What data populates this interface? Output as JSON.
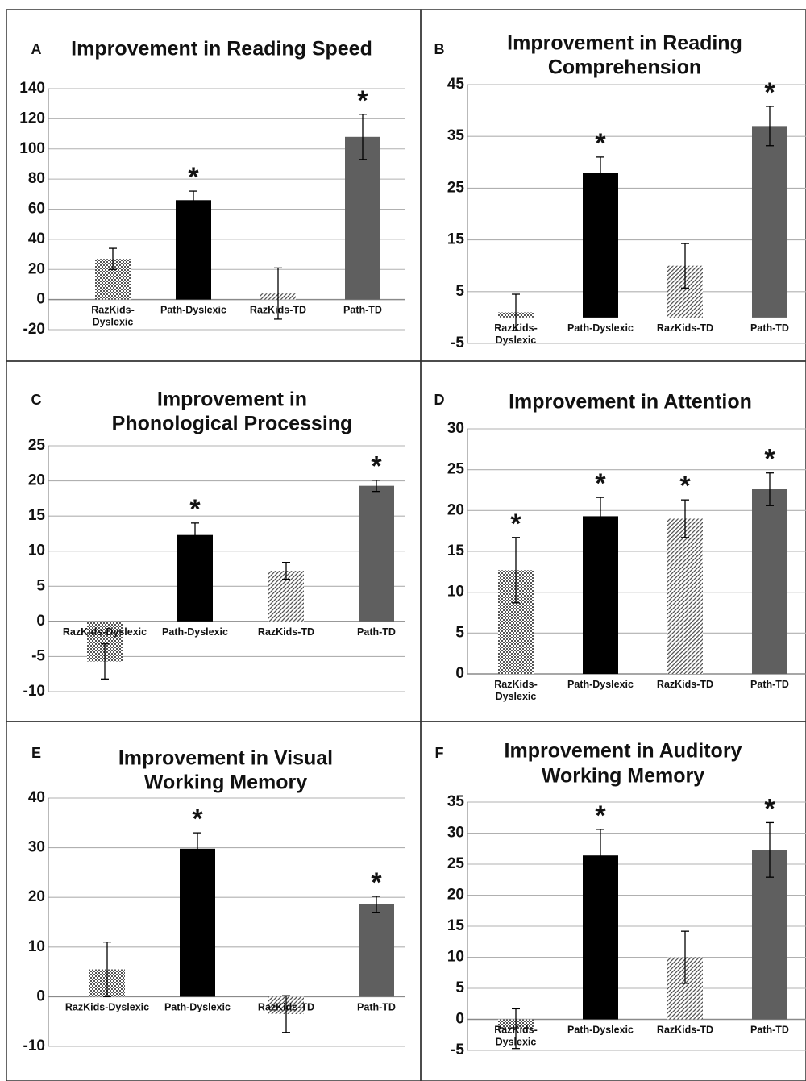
{
  "colors": {
    "path_dyslexic": "#000000",
    "path_td": "#5f5f5f",
    "pattern_ink": "#555555",
    "gridline": "#b0b0b0",
    "panel_border": "#333333"
  },
  "chart_data": [
    {
      "panel": "A",
      "type": "bar",
      "title": [
        "Improvement in Reading Speed"
      ],
      "categories": [
        [
          "RazKids-",
          "Dyslexic"
        ],
        [
          "Path-Dyslexic"
        ],
        [
          "RazKids-TD"
        ],
        [
          "Path-TD"
        ]
      ],
      "values": [
        27,
        66,
        4,
        108
      ],
      "error": [
        7,
        6,
        17,
        15
      ],
      "significant": [
        false,
        true,
        false,
        true
      ],
      "bar_fills": [
        "checker",
        "path_dyslexic",
        "hatch",
        "path_td"
      ],
      "ylim": [
        -20,
        140
      ],
      "yticks": [
        -20,
        0,
        20,
        40,
        60,
        80,
        100,
        120,
        140
      ],
      "grid": true,
      "xlabel": "",
      "ylabel": ""
    },
    {
      "panel": "B",
      "type": "bar",
      "title": [
        "Improvement in Reading",
        "Comprehension"
      ],
      "categories": [
        [
          "RazKids-",
          "Dyslexic"
        ],
        [
          "Path-Dyslexic"
        ],
        [
          "RazKids-TD"
        ],
        [
          "Path-TD"
        ]
      ],
      "values": [
        1,
        28,
        10,
        37
      ],
      "error": [
        3.5,
        3,
        4.3,
        3.8
      ],
      "significant": [
        false,
        true,
        false,
        true
      ],
      "bar_fills": [
        "checker",
        "path_dyslexic",
        "hatch",
        "path_td"
      ],
      "ylim": [
        -5,
        45
      ],
      "yticks": [
        -5,
        5,
        15,
        25,
        35,
        45
      ],
      "grid": true,
      "xlabel": "",
      "ylabel": ""
    },
    {
      "panel": "C",
      "type": "bar",
      "title": [
        "Improvement in",
        "Phonological Processing"
      ],
      "categories": [
        [
          "RazKids-Dyslexic"
        ],
        [
          "Path-Dyslexic"
        ],
        [
          "RazKids-TD"
        ],
        [
          "Path-TD"
        ]
      ],
      "values": [
        -5.7,
        12.3,
        7.2,
        19.3
      ],
      "error": [
        2.5,
        1.7,
        1.2,
        0.8
      ],
      "significant": [
        false,
        true,
        false,
        true
      ],
      "bar_fills": [
        "checker",
        "path_dyslexic",
        "hatch",
        "path_td"
      ],
      "ylim": [
        -10,
        25
      ],
      "yticks": [
        -10,
        -5,
        0,
        5,
        10,
        15,
        20,
        25
      ],
      "grid": true,
      "xlabel": "",
      "ylabel": ""
    },
    {
      "panel": "D",
      "type": "bar",
      "title": [
        "Improvement in Attention"
      ],
      "categories": [
        [
          "RazKids-",
          "Dyslexic"
        ],
        [
          "Path-Dyslexic"
        ],
        [
          "RazKids-TD"
        ],
        [
          "Path-TD"
        ]
      ],
      "values": [
        12.7,
        19.3,
        19,
        22.6
      ],
      "error": [
        4,
        2.3,
        2.3,
        2
      ],
      "significant": [
        true,
        true,
        true,
        true
      ],
      "bar_fills": [
        "checker",
        "path_dyslexic",
        "hatch",
        "path_td"
      ],
      "ylim": [
        0,
        30
      ],
      "yticks": [
        0,
        5,
        10,
        15,
        20,
        25,
        30
      ],
      "grid": true,
      "xlabel": "",
      "ylabel": ""
    },
    {
      "panel": "E",
      "type": "bar",
      "title": [
        "Improvement in Visual",
        "Working Memory"
      ],
      "categories": [
        [
          "RazKids-Dyslexic"
        ],
        [
          "Path-Dyslexic"
        ],
        [
          "RazKids-TD"
        ],
        [
          "Path-TD"
        ]
      ],
      "values": [
        5.5,
        29.8,
        -3.5,
        18.6
      ],
      "error": [
        5.5,
        3.2,
        3.7,
        1.6
      ],
      "significant": [
        false,
        true,
        false,
        true
      ],
      "bar_fills": [
        "checker",
        "path_dyslexic",
        "hatch",
        "path_td"
      ],
      "ylim": [
        -10,
        40
      ],
      "yticks": [
        -10,
        0,
        10,
        20,
        30,
        40
      ],
      "grid": true,
      "xlabel": "",
      "ylabel": ""
    },
    {
      "panel": "F",
      "type": "bar",
      "title": [
        "Improvement in Auditory",
        "Working Memory"
      ],
      "categories": [
        [
          "RazKids-",
          "Dyslexic"
        ],
        [
          "Path-Dyslexic"
        ],
        [
          "RazKids-TD"
        ],
        [
          "Path-TD"
        ]
      ],
      "values": [
        -1.5,
        26.4,
        10,
        27.3
      ],
      "error": [
        3.2,
        4.2,
        4.2,
        4.4
      ],
      "significant": [
        false,
        true,
        false,
        true
      ],
      "bar_fills": [
        "checker",
        "path_dyslexic",
        "hatch",
        "path_td"
      ],
      "ylim": [
        -5,
        35
      ],
      "yticks": [
        -5,
        0,
        5,
        10,
        15,
        20,
        25,
        30,
        35
      ],
      "grid": true,
      "xlabel": "",
      "ylabel": ""
    }
  ],
  "significance_marker": "*"
}
